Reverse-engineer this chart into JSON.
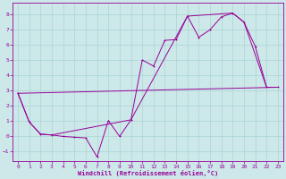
{
  "xlabel": "Windchill (Refroidissement éolien,°C)",
  "bg_color": "#cce8e8",
  "line_color": "#990099",
  "grid_color": "#aad4d4",
  "xlim": [
    -0.5,
    23.5
  ],
  "ylim": [
    -1.7,
    8.8
  ],
  "xticks": [
    0,
    1,
    2,
    3,
    4,
    5,
    6,
    7,
    8,
    9,
    10,
    11,
    12,
    13,
    14,
    15,
    16,
    17,
    18,
    19,
    20,
    21,
    22,
    23
  ],
  "yticks": [
    -1,
    0,
    1,
    2,
    3,
    4,
    5,
    6,
    7,
    8
  ],
  "series1": [
    [
      0,
      2.8
    ],
    [
      1,
      0.9
    ],
    [
      2,
      0.1
    ],
    [
      3,
      0.05
    ],
    [
      4,
      -0.05
    ],
    [
      5,
      -0.1
    ],
    [
      6,
      -0.15
    ],
    [
      7,
      -1.4
    ],
    [
      8,
      1.0
    ],
    [
      9,
      -0.05
    ],
    [
      10,
      1.05
    ],
    [
      11,
      5.0
    ],
    [
      12,
      4.6
    ],
    [
      13,
      6.3
    ],
    [
      14,
      6.35
    ],
    [
      15,
      7.9
    ],
    [
      16,
      6.5
    ],
    [
      17,
      7.0
    ],
    [
      18,
      7.85
    ],
    [
      19,
      8.1
    ],
    [
      20,
      7.5
    ],
    [
      21,
      5.9
    ],
    [
      22,
      3.2
    ],
    [
      23,
      3.2
    ]
  ],
  "series2": [
    [
      0,
      2.8
    ],
    [
      23,
      3.2
    ]
  ],
  "series3": [
    [
      0,
      2.8
    ],
    [
      1,
      0.9
    ],
    [
      2,
      0.1
    ],
    [
      3,
      0.05
    ],
    [
      10,
      1.05
    ],
    [
      15,
      7.9
    ],
    [
      19,
      8.1
    ],
    [
      20,
      7.5
    ],
    [
      22,
      3.2
    ],
    [
      23,
      3.2
    ]
  ]
}
